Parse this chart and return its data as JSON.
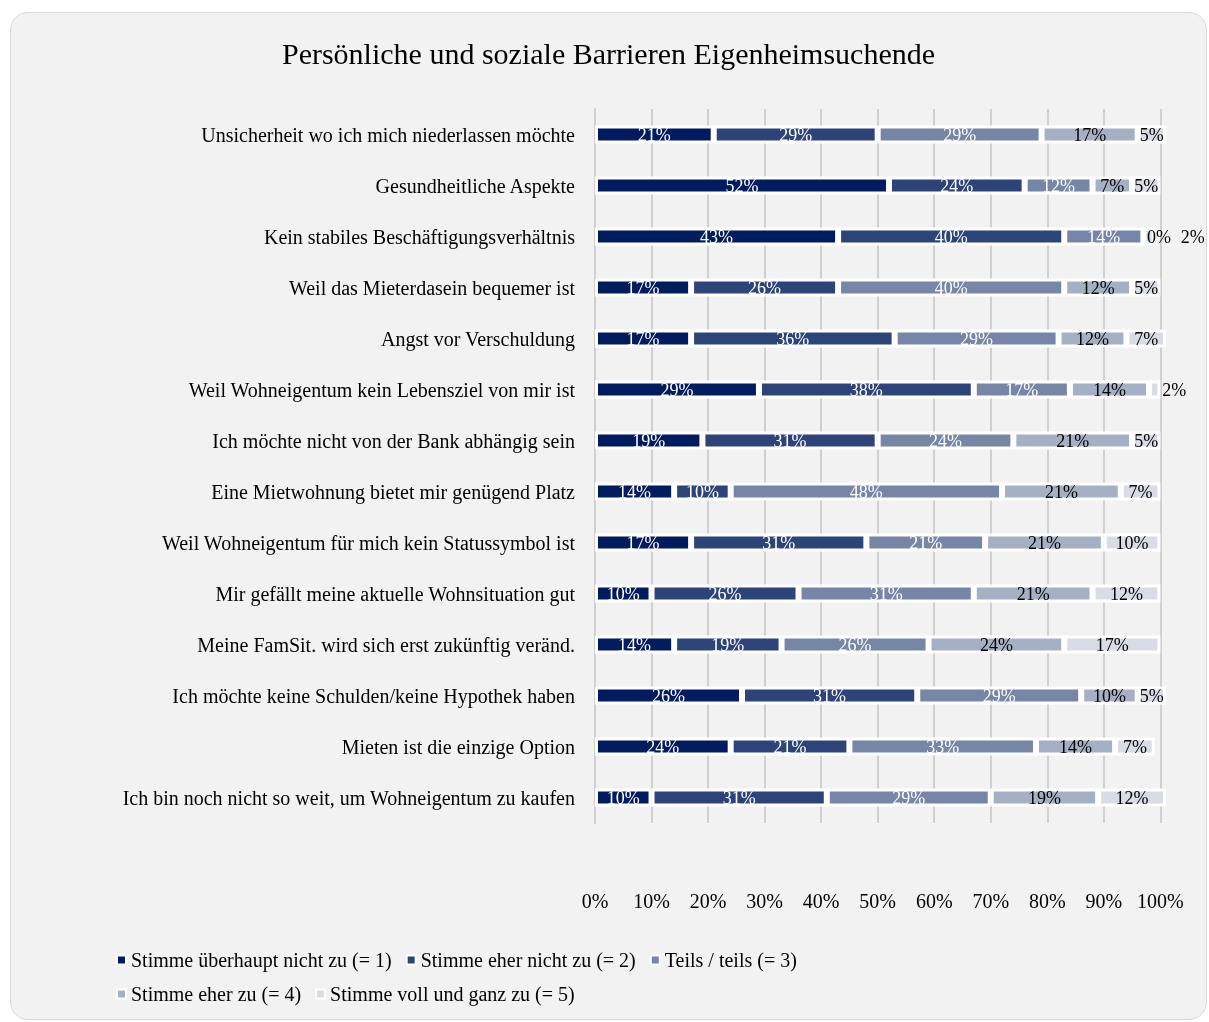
{
  "chart_data": {
    "type": "bar",
    "orientation": "horizontal",
    "stacked": true,
    "title": "Persönliche und soziale Barrieren Eigenheimsuchende",
    "categories": [
      "Unsicherheit wo ich mich niederlassen möchte",
      "Gesundheitliche Aspekte",
      "Kein stabiles Beschäftigungsverhältnis",
      "Weil das Mieterdasein bequemer ist",
      "Angst vor Verschuldung",
      "Weil Wohneigentum kein Lebensziel von mir ist",
      "Ich möchte nicht von der Bank abhängig sein",
      "Eine Mietwohnung bietet mir genügend Platz",
      "Weil Wohneigentum für mich kein Statussymbol ist",
      "Mir gefällt meine aktuelle Wohnsituation gut",
      "Meine FamSit. wird sich erst zukünftig veränd.",
      "Ich möchte keine Schulden/keine Hypothek haben",
      "Mieten ist die einzige Option",
      "Ich bin noch nicht so weit, um Wohneigentum zu kaufen"
    ],
    "series": [
      {
        "name": "Stimme überhaupt nicht zu (= 1)",
        "color": "#001b5e",
        "values": [
          21,
          52,
          43,
          17,
          17,
          29,
          19,
          14,
          17,
          10,
          14,
          26,
          24,
          10
        ],
        "value_labels": [
          "21%",
          "52%",
          "43%",
          "17%",
          "17%",
          "29%",
          "19%",
          "14%",
          "17%",
          "10%",
          "14%",
          "26%",
          "24%",
          "10%"
        ]
      },
      {
        "name": "Stimme eher nicht zu (= 2)",
        "color": "#2d4478",
        "values": [
          29,
          24,
          40,
          26,
          36,
          38,
          31,
          10,
          31,
          26,
          19,
          31,
          21,
          31
        ],
        "value_labels": [
          "29%",
          "24%",
          "40%",
          "26%",
          "36%",
          "38%",
          "31%",
          "10%",
          "31%",
          "26%",
          "19%",
          "31%",
          "21%",
          "31%"
        ]
      },
      {
        "name": "Teils / teils (= 3)",
        "color": "#7786a6",
        "values": [
          29,
          12,
          14,
          40,
          29,
          17,
          24,
          48,
          21,
          31,
          26,
          29,
          33,
          29
        ],
        "value_labels": [
          "29%",
          "12%",
          "14%",
          "40%",
          "29%",
          "17%",
          "24%",
          "48%",
          "21%",
          "31%",
          "26%",
          "29%",
          "33%",
          "29%"
        ]
      },
      {
        "name": "Stimme eher zu (= 4)",
        "color": "#a6b0c5",
        "values": [
          17,
          7,
          0,
          12,
          12,
          14,
          21,
          21,
          21,
          21,
          24,
          10,
          14,
          19
        ],
        "value_labels": [
          "17%",
          "7%",
          "0%",
          "12%",
          "12%",
          "14%",
          "21%",
          "21%",
          "21%",
          "21%",
          "24%",
          "10%",
          "14%",
          "19%"
        ]
      },
      {
        "name": "Stimme voll und ganz zu (= 5)",
        "color": "#d9dce5",
        "values": [
          5,
          5,
          2,
          5,
          7,
          2,
          5,
          7,
          10,
          12,
          17,
          5,
          7,
          12
        ],
        "value_labels": [
          "5%",
          "5%",
          "2%",
          "5%",
          "7%",
          "2%",
          "5%",
          "7%",
          "10%",
          "12%",
          "17%",
          "5%",
          "7%",
          "12%"
        ]
      }
    ],
    "xlim": [
      0,
      101
    ],
    "xticks": [
      {
        "value": 0,
        "label": "0%"
      },
      {
        "value": 10,
        "label": "10%"
      },
      {
        "value": 20,
        "label": "20%"
      },
      {
        "value": 30,
        "label": "30%"
      },
      {
        "value": 40,
        "label": "40%"
      },
      {
        "value": 50,
        "label": "50%"
      },
      {
        "value": 60,
        "label": "60%"
      },
      {
        "value": 70,
        "label": "70%"
      },
      {
        "value": 80,
        "label": "80%"
      },
      {
        "value": 90,
        "label": "90%"
      },
      {
        "value": 100,
        "label": "100%"
      }
    ],
    "grid": "x",
    "legend": "bottom"
  }
}
